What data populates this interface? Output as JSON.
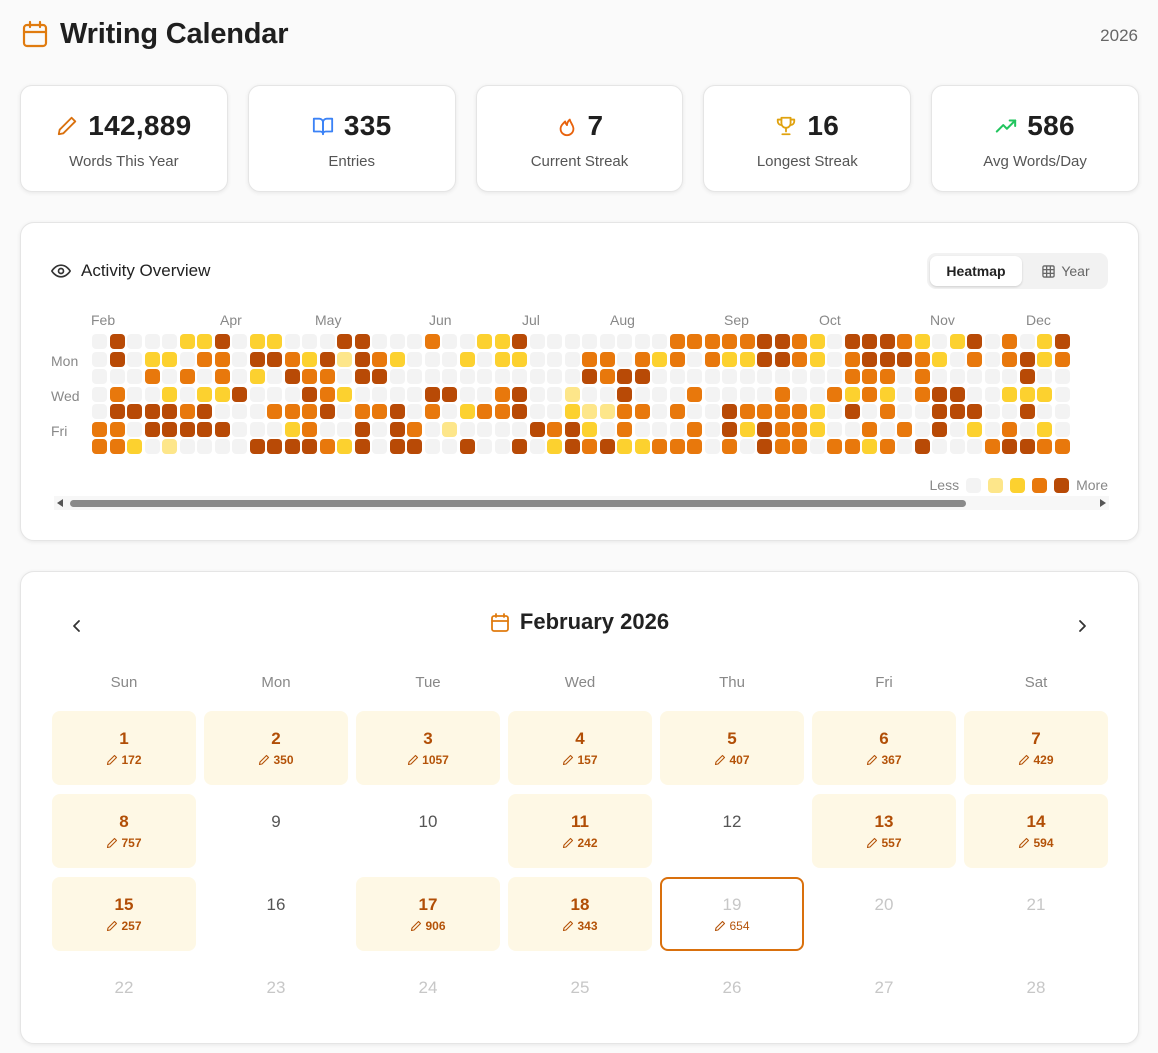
{
  "header": {
    "title": "Writing Calendar",
    "year": "2026",
    "icon": "calendar-icon"
  },
  "colors": {
    "accent": "#d9700d",
    "heat0": "#f3f3f3",
    "heat1": "#fde68a",
    "heat2": "#fcd12f",
    "heat3": "#e8780c",
    "heat4": "#b84a06"
  },
  "stats": [
    {
      "value": "142,889",
      "label": "Words This Year",
      "icon": "pencil-icon"
    },
    {
      "value": "335",
      "label": "Entries",
      "icon": "book-open-icon"
    },
    {
      "value": "7",
      "label": "Current Streak",
      "icon": "flame-icon"
    },
    {
      "value": "16",
      "label": "Longest Streak",
      "icon": "trophy-icon"
    },
    {
      "value": "586",
      "label": "Avg Words/Day",
      "icon": "trending-up-icon"
    }
  ],
  "activity": {
    "title": "Activity Overview",
    "toggle": {
      "heatmap": "Heatmap",
      "year": "Year",
      "selected": "Heatmap"
    },
    "months": [
      "Feb",
      "Apr",
      "May",
      "Jun",
      "Jul",
      "Aug",
      "Sep",
      "Oct",
      "Nov",
      "Dec"
    ],
    "days": [
      "Mon",
      "Wed",
      "Fri"
    ],
    "legend": {
      "less": "Less",
      "more": "More"
    },
    "weeks": [
      [
        0,
        0,
        0,
        0,
        0,
        3,
        3
      ],
      [
        4,
        4,
        0,
        3,
        4,
        3,
        3
      ],
      [
        0,
        0,
        0,
        0,
        4,
        0,
        2
      ],
      [
        0,
        2,
        3,
        0,
        4,
        4,
        0
      ],
      [
        0,
        2,
        0,
        2,
        4,
        4,
        1
      ],
      [
        2,
        0,
        3,
        0,
        3,
        4,
        0
      ],
      [
        2,
        3,
        0,
        2,
        4,
        4,
        0
      ],
      [
        4,
        3,
        3,
        2,
        0,
        4,
        0
      ],
      [
        0,
        0,
        0,
        4,
        0,
        0,
        0
      ],
      [
        2,
        4,
        2,
        0,
        0,
        0,
        4
      ],
      [
        2,
        4,
        0,
        0,
        3,
        0,
        4
      ],
      [
        0,
        3,
        4,
        0,
        3,
        2,
        4
      ],
      [
        0,
        2,
        3,
        4,
        3,
        3,
        4
      ],
      [
        0,
        4,
        3,
        3,
        4,
        0,
        3
      ],
      [
        4,
        1,
        0,
        2,
        0,
        0,
        2
      ],
      [
        4,
        4,
        4,
        0,
        3,
        4,
        4
      ],
      [
        0,
        3,
        4,
        0,
        3,
        0,
        0
      ],
      [
        0,
        2,
        0,
        0,
        4,
        4,
        4
      ],
      [
        0,
        0,
        0,
        0,
        0,
        3,
        4
      ],
      [
        3,
        0,
        0,
        4,
        3,
        0,
        0
      ],
      [
        0,
        0,
        0,
        4,
        0,
        1,
        0
      ],
      [
        0,
        2,
        0,
        0,
        2,
        0,
        4
      ],
      [
        2,
        0,
        0,
        0,
        3,
        0,
        0
      ],
      [
        2,
        2,
        0,
        3,
        3,
        0,
        0
      ],
      [
        4,
        2,
        0,
        4,
        4,
        0,
        4
      ],
      [
        0,
        0,
        0,
        0,
        0,
        4,
        0
      ],
      [
        0,
        0,
        0,
        0,
        0,
        3,
        2
      ],
      [
        0,
        0,
        0,
        1,
        2,
        4,
        4
      ],
      [
        0,
        3,
        4,
        0,
        1,
        2,
        3
      ],
      [
        0,
        3,
        3,
        0,
        1,
        0,
        4
      ],
      [
        0,
        0,
        4,
        4,
        3,
        3,
        2
      ],
      [
        0,
        3,
        4,
        0,
        3,
        0,
        2
      ],
      [
        0,
        2,
        0,
        0,
        0,
        0,
        3
      ],
      [
        3,
        3,
        0,
        0,
        3,
        0,
        3
      ],
      [
        3,
        0,
        0,
        3,
        0,
        3,
        3
      ],
      [
        3,
        3,
        0,
        0,
        0,
        0,
        0
      ],
      [
        3,
        2,
        0,
        0,
        4,
        4,
        3
      ],
      [
        3,
        2,
        0,
        0,
        3,
        2,
        0
      ],
      [
        4,
        4,
        0,
        0,
        3,
        4,
        4
      ],
      [
        4,
        4,
        0,
        3,
        3,
        3,
        3
      ],
      [
        3,
        3,
        0,
        0,
        3,
        3,
        3
      ],
      [
        2,
        2,
        0,
        0,
        2,
        2,
        0
      ],
      [
        0,
        0,
        0,
        3,
        0,
        0,
        3
      ],
      [
        4,
        3,
        3,
        2,
        4,
        0,
        3
      ],
      [
        4,
        4,
        3,
        3,
        0,
        3,
        2
      ],
      [
        4,
        4,
        3,
        2,
        3,
        0,
        3
      ],
      [
        3,
        4,
        0,
        0,
        0,
        3,
        0
      ],
      [
        2,
        3,
        3,
        3,
        0,
        0,
        4
      ],
      [
        0,
        2,
        0,
        4,
        4,
        4,
        0
      ],
      [
        2,
        0,
        0,
        4,
        4,
        0,
        0
      ],
      [
        4,
        3,
        0,
        0,
        4,
        2,
        0
      ],
      [
        0,
        0,
        0,
        0,
        0,
        0,
        3
      ],
      [
        3,
        3,
        0,
        2,
        0,
        3,
        4
      ],
      [
        0,
        4,
        4,
        2,
        4,
        0,
        4
      ],
      [
        2,
        2,
        0,
        2,
        0,
        2,
        3
      ],
      [
        4,
        3,
        0,
        0,
        0,
        0,
        3
      ]
    ]
  },
  "calendar": {
    "month_title": "February 2026",
    "weekdays": [
      "Sun",
      "Mon",
      "Tue",
      "Wed",
      "Thu",
      "Fri",
      "Sat"
    ],
    "days": [
      {
        "day": "1",
        "words": "172",
        "status": "filled"
      },
      {
        "day": "2",
        "words": "350",
        "status": "filled"
      },
      {
        "day": "3",
        "words": "1057",
        "status": "filled"
      },
      {
        "day": "4",
        "words": "157",
        "status": "filled"
      },
      {
        "day": "5",
        "words": "407",
        "status": "filled"
      },
      {
        "day": "6",
        "words": "367",
        "status": "filled"
      },
      {
        "day": "7",
        "words": "429",
        "status": "filled"
      },
      {
        "day": "8",
        "words": "757",
        "status": "filled"
      },
      {
        "day": "9",
        "words": "",
        "status": "plain"
      },
      {
        "day": "10",
        "words": "",
        "status": "plain"
      },
      {
        "day": "11",
        "words": "242",
        "status": "filled"
      },
      {
        "day": "12",
        "words": "",
        "status": "plain"
      },
      {
        "day": "13",
        "words": "557",
        "status": "filled"
      },
      {
        "day": "14",
        "words": "594",
        "status": "filled"
      },
      {
        "day": "15",
        "words": "257",
        "status": "filled"
      },
      {
        "day": "16",
        "words": "",
        "status": "plain"
      },
      {
        "day": "17",
        "words": "906",
        "status": "filled"
      },
      {
        "day": "18",
        "words": "343",
        "status": "filled"
      },
      {
        "day": "19",
        "words": "654",
        "status": "today"
      },
      {
        "day": "20",
        "words": "",
        "status": "future"
      },
      {
        "day": "21",
        "words": "",
        "status": "future"
      },
      {
        "day": "22",
        "words": "",
        "status": "future"
      },
      {
        "day": "23",
        "words": "",
        "status": "future"
      },
      {
        "day": "24",
        "words": "",
        "status": "future"
      },
      {
        "day": "25",
        "words": "",
        "status": "future"
      },
      {
        "day": "26",
        "words": "",
        "status": "future"
      },
      {
        "day": "27",
        "words": "",
        "status": "future"
      },
      {
        "day": "28",
        "words": "",
        "status": "future"
      }
    ]
  }
}
